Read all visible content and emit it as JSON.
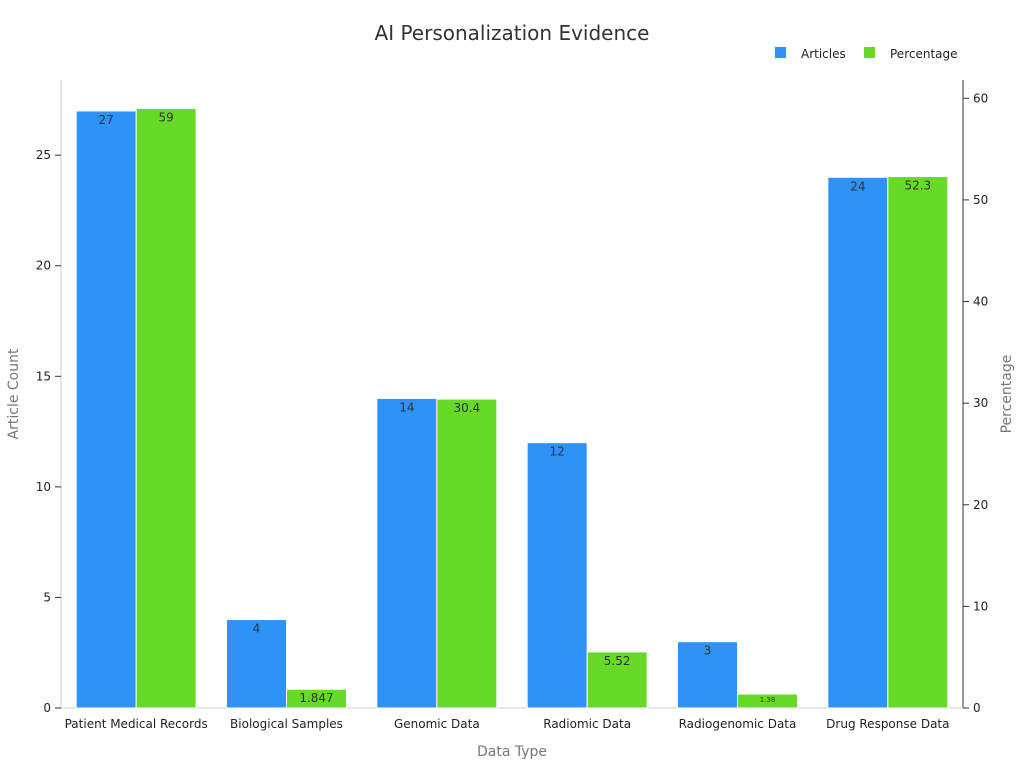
{
  "chart_data": {
    "type": "bar",
    "title": "AI Personalization Evidence",
    "xlabel": "Data Type",
    "ylabel": "Article Count",
    "y2label": "Percentage",
    "categories": [
      "Patient Medical Records",
      "Biological Samples",
      "Genomic Data",
      "Radiomic Data",
      "Radiogenomic Data",
      "Drug Response Data"
    ],
    "series": [
      {
        "name": "Articles",
        "axis": "left",
        "values": [
          27,
          4,
          14,
          12,
          3,
          24
        ],
        "labels": [
          "27",
          "4",
          "14",
          "12",
          "3",
          "24"
        ],
        "color": "#2f92f9"
      },
      {
        "name": "Percentage",
        "axis": "right",
        "values": [
          59,
          1.847,
          30.4,
          5.52,
          1.38,
          52.3
        ],
        "labels": [
          "59",
          "1.847",
          "30.4",
          "5.52",
          "1.38",
          "52.3"
        ],
        "color": "#66da26"
      }
    ],
    "ylim": [
      0,
      28.4
    ],
    "y2lim": [
      0,
      61.8
    ],
    "yticks": [
      0,
      5,
      10,
      15,
      20,
      25
    ],
    "y2ticks": [
      0,
      10,
      20,
      30,
      40,
      50,
      60
    ],
    "legend": "top-right",
    "grid": false
  }
}
